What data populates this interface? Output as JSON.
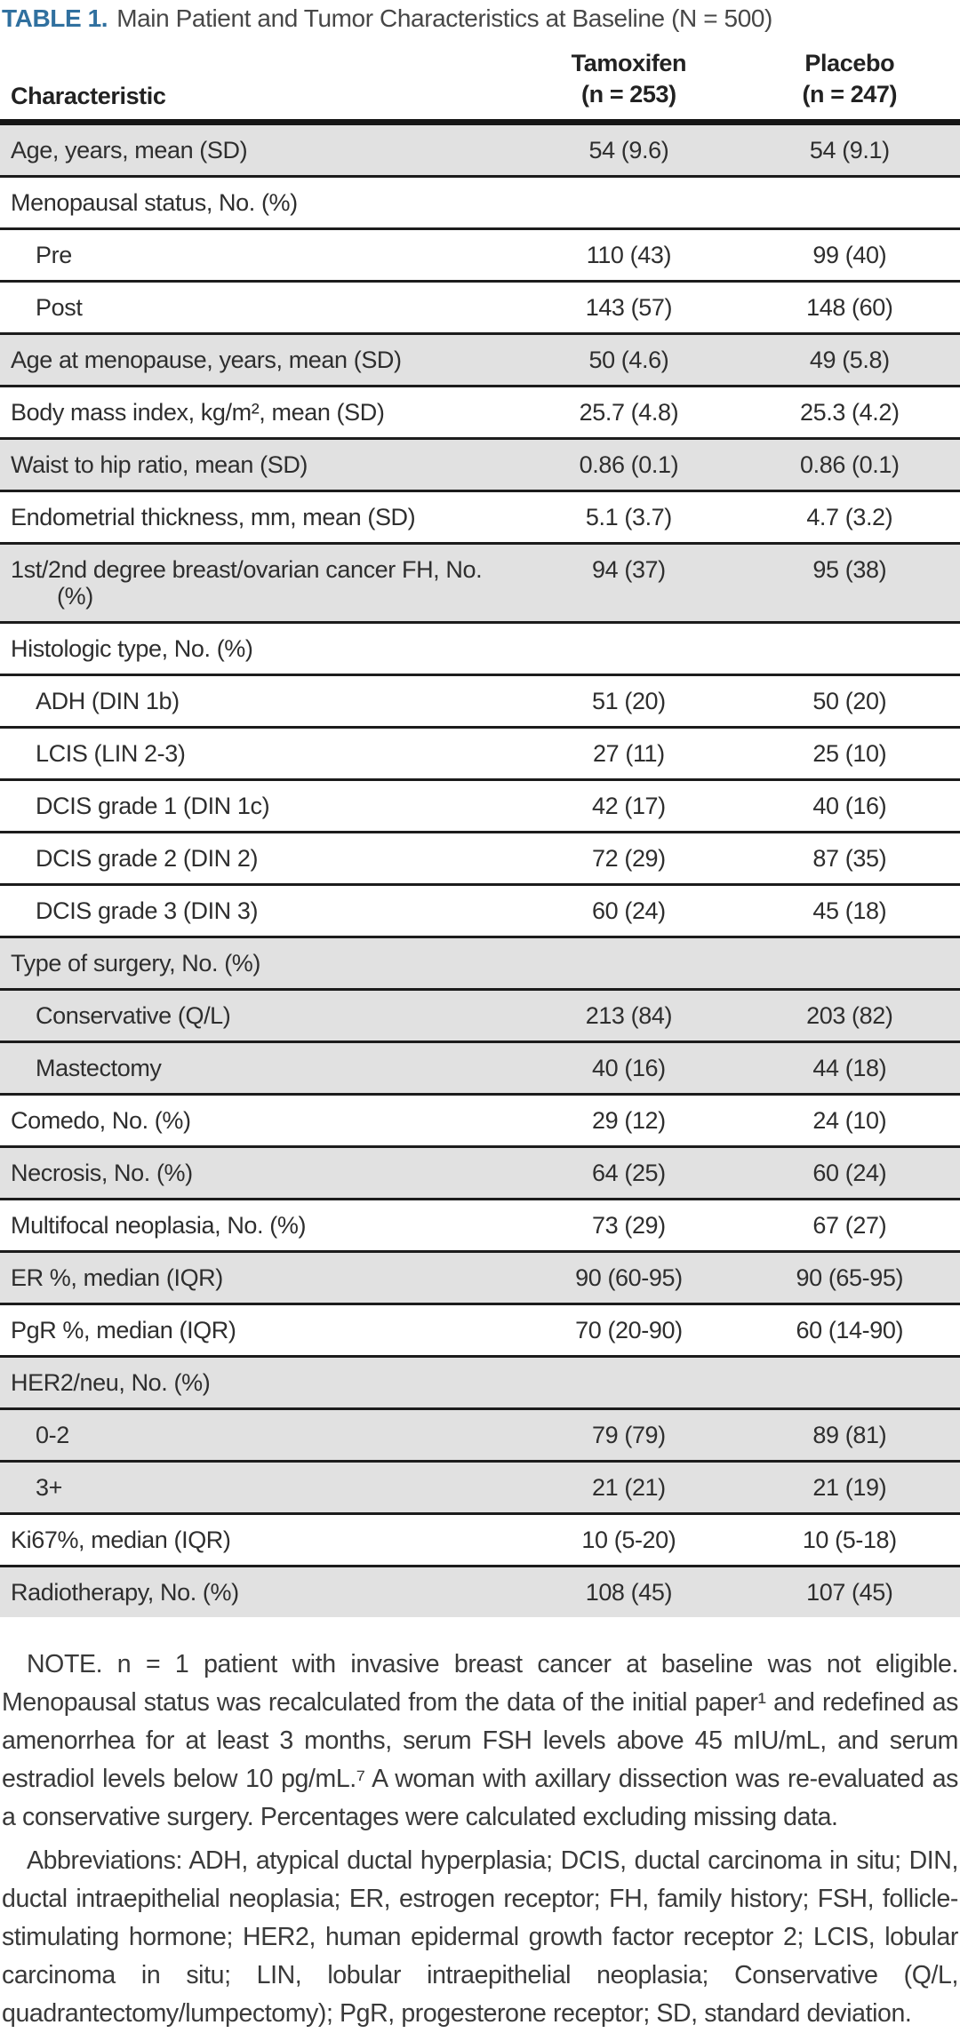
{
  "title": {
    "label": "TABLE 1.",
    "text": "Main Patient and Tumor Characteristics at Baseline (N = 500)"
  },
  "header": {
    "characteristic": "Characteristic",
    "col1": {
      "name": "Tamoxifen",
      "n": "(n = 253)"
    },
    "col2": {
      "name": "Placebo",
      "n": "(n = 247)"
    }
  },
  "table": {
    "rows": [
      {
        "label": "Age, years, mean (SD)",
        "t": "54 (9.6)",
        "p": "54 (9.1)",
        "shaded": true,
        "indent": false
      },
      {
        "label": "Menopausal status, No. (%)",
        "t": "",
        "p": "",
        "shaded": false,
        "indent": false
      },
      {
        "label": "Pre",
        "t": "110 (43)",
        "p": "99 (40)",
        "shaded": false,
        "indent": true
      },
      {
        "label": "Post",
        "t": "143 (57)",
        "p": "148 (60)",
        "shaded": false,
        "indent": true
      },
      {
        "label": "Age at menopause, years, mean (SD)",
        "t": "50 (4.6)",
        "p": "49 (5.8)",
        "shaded": true,
        "indent": false
      },
      {
        "label": "Body mass index, kg/m², mean (SD)",
        "t": "25.7 (4.8)",
        "p": "25.3 (4.2)",
        "shaded": false,
        "indent": false
      },
      {
        "label": "Waist to hip ratio, mean (SD)",
        "t": "0.86 (0.1)",
        "p": "0.86 (0.1)",
        "shaded": true,
        "indent": false
      },
      {
        "label": "Endometrial thickness, mm, mean (SD)",
        "t": "5.1 (3.7)",
        "p": "4.7 (3.2)",
        "shaded": false,
        "indent": false
      },
      {
        "label": "1st/2nd degree breast/ovarian cancer FH, No. (%)",
        "t": "94 (37)",
        "p": "95 (38)",
        "shaded": true,
        "indent": false
      },
      {
        "label": "Histologic type, No. (%)",
        "t": "",
        "p": "",
        "shaded": false,
        "indent": false
      },
      {
        "label": "ADH (DIN 1b)",
        "t": "51 (20)",
        "p": "50 (20)",
        "shaded": false,
        "indent": true
      },
      {
        "label": "LCIS (LIN 2-3)",
        "t": "27 (11)",
        "p": "25 (10)",
        "shaded": false,
        "indent": true
      },
      {
        "label": "DCIS grade 1 (DIN 1c)",
        "t": "42 (17)",
        "p": "40 (16)",
        "shaded": false,
        "indent": true
      },
      {
        "label": "DCIS grade 2 (DIN 2)",
        "t": "72 (29)",
        "p": "87 (35)",
        "shaded": false,
        "indent": true
      },
      {
        "label": "DCIS grade 3 (DIN 3)",
        "t": "60 (24)",
        "p": "45 (18)",
        "shaded": false,
        "indent": true
      },
      {
        "label": "Type of surgery, No. (%)",
        "t": "",
        "p": "",
        "shaded": true,
        "indent": false
      },
      {
        "label": "Conservative (Q/L)",
        "t": "213 (84)",
        "p": "203 (82)",
        "shaded": true,
        "indent": true
      },
      {
        "label": "Mastectomy",
        "t": "40 (16)",
        "p": "44 (18)",
        "shaded": true,
        "indent": true
      },
      {
        "label": "Comedo, No. (%)",
        "t": "29 (12)",
        "p": "24 (10)",
        "shaded": false,
        "indent": false
      },
      {
        "label": "Necrosis, No. (%)",
        "t": "64 (25)",
        "p": "60 (24)",
        "shaded": true,
        "indent": false
      },
      {
        "label": "Multifocal neoplasia, No. (%)",
        "t": "73 (29)",
        "p": "67 (27)",
        "shaded": false,
        "indent": false
      },
      {
        "label": "ER %, median (IQR)",
        "t": "90 (60-95)",
        "p": "90 (65-95)",
        "shaded": true,
        "indent": false
      },
      {
        "label": "PgR %, median (IQR)",
        "t": "70 (20-90)",
        "p": "60 (14-90)",
        "shaded": false,
        "indent": false
      },
      {
        "label": "HER2/neu, No. (%)",
        "t": "",
        "p": "",
        "shaded": true,
        "indent": false
      },
      {
        "label": "0-2",
        "t": "79 (79)",
        "p": "89 (81)",
        "shaded": true,
        "indent": true
      },
      {
        "label": "3+",
        "t": "21 (21)",
        "p": "21 (19)",
        "shaded": true,
        "indent": true
      },
      {
        "label": "Ki67%, median (IQR)",
        "t": "10 (5-20)",
        "p": "10 (5-18)",
        "shaded": false,
        "indent": false
      },
      {
        "label": "Radiotherapy, No. (%)",
        "t": "108 (45)",
        "p": "107 (45)",
        "shaded": true,
        "indent": false
      }
    ]
  },
  "notes": {
    "note": "NOTE. n = 1 patient with invasive breast cancer at baseline was not eligible. Menopausal status was recalculated from the data of the initial paper¹ and redefined as amenorrhea for at least 3 months, serum FSH levels above 45 mIU/mL, and serum estradiol levels below 10 pg/mL.⁷ A woman with axillary dissection was re-evaluated as a conservative surgery. Percentages were calculated excluding missing data.",
    "abbreviations": "Abbreviations: ADH, atypical ductal hyperplasia; DCIS, ductal carcinoma in situ; DIN, ductal intraepithelial neoplasia; ER, estrogen receptor; FH, family history; FSH, follicle-stimulating hormone; HER2, human epidermal growth factor receptor 2; LCIS, lobular carcinoma in situ; LIN, lobular intraepithelial neoplasia; Conservative (Q/L, quadrantectomy/lumpectomy); PgR, progesterone receptor; SD, standard deviation."
  },
  "colors": {
    "accent_blue": "#30709f",
    "row_shade": "#e1e1e1",
    "rule": "#1c1c1c"
  }
}
